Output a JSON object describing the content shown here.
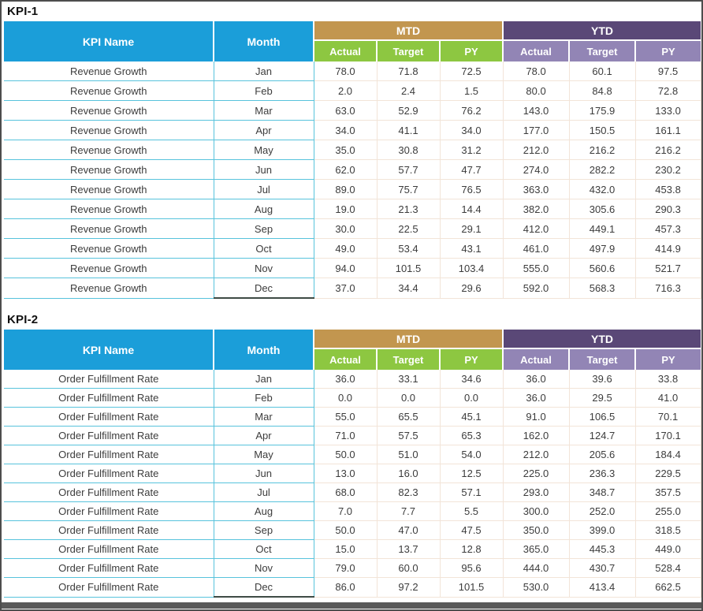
{
  "colors": {
    "header_cyan": "#1b9ed9",
    "mtd_tan": "#c2964f",
    "sub_green": "#8dc741",
    "ytd_purple": "#5a4877",
    "sub_purple": "#9285b5",
    "grid_cyan": "#58c3dc",
    "grid_peach": "#f2e4d8",
    "bottom_bar_gray": "#595959"
  },
  "tables": [
    {
      "section_title": "KPI-1",
      "header": {
        "kpi_name": "KPI Name",
        "month": "Month",
        "mtd": "MTD",
        "ytd": "YTD",
        "sub": [
          "Actual",
          "Target",
          "PY"
        ]
      },
      "rows": [
        {
          "kpi": "Revenue Growth",
          "month": "Jan",
          "mtd": [
            "78.0",
            "71.8",
            "72.5"
          ],
          "ytd": [
            "78.0",
            "60.1",
            "97.5"
          ]
        },
        {
          "kpi": "Revenue Growth",
          "month": "Feb",
          "mtd": [
            "2.0",
            "2.4",
            "1.5"
          ],
          "ytd": [
            "80.0",
            "84.8",
            "72.8"
          ]
        },
        {
          "kpi": "Revenue Growth",
          "month": "Mar",
          "mtd": [
            "63.0",
            "52.9",
            "76.2"
          ],
          "ytd": [
            "143.0",
            "175.9",
            "133.0"
          ]
        },
        {
          "kpi": "Revenue Growth",
          "month": "Apr",
          "mtd": [
            "34.0",
            "41.1",
            "34.0"
          ],
          "ytd": [
            "177.0",
            "150.5",
            "161.1"
          ]
        },
        {
          "kpi": "Revenue Growth",
          "month": "May",
          "mtd": [
            "35.0",
            "30.8",
            "31.2"
          ],
          "ytd": [
            "212.0",
            "216.2",
            "216.2"
          ]
        },
        {
          "kpi": "Revenue Growth",
          "month": "Jun",
          "mtd": [
            "62.0",
            "57.7",
            "47.7"
          ],
          "ytd": [
            "274.0",
            "282.2",
            "230.2"
          ]
        },
        {
          "kpi": "Revenue Growth",
          "month": "Jul",
          "mtd": [
            "89.0",
            "75.7",
            "76.5"
          ],
          "ytd": [
            "363.0",
            "432.0",
            "453.8"
          ]
        },
        {
          "kpi": "Revenue Growth",
          "month": "Aug",
          "mtd": [
            "19.0",
            "21.3",
            "14.4"
          ],
          "ytd": [
            "382.0",
            "305.6",
            "290.3"
          ]
        },
        {
          "kpi": "Revenue Growth",
          "month": "Sep",
          "mtd": [
            "30.0",
            "22.5",
            "29.1"
          ],
          "ytd": [
            "412.0",
            "449.1",
            "457.3"
          ]
        },
        {
          "kpi": "Revenue Growth",
          "month": "Oct",
          "mtd": [
            "49.0",
            "53.4",
            "43.1"
          ],
          "ytd": [
            "461.0",
            "497.9",
            "414.9"
          ]
        },
        {
          "kpi": "Revenue Growth",
          "month": "Nov",
          "mtd": [
            "94.0",
            "101.5",
            "103.4"
          ],
          "ytd": [
            "555.0",
            "560.6",
            "521.7"
          ]
        },
        {
          "kpi": "Revenue Growth",
          "month": "Dec",
          "mtd": [
            "37.0",
            "34.4",
            "29.6"
          ],
          "ytd": [
            "592.0",
            "568.3",
            "716.3"
          ]
        }
      ]
    },
    {
      "section_title": "KPI-2",
      "header": {
        "kpi_name": "KPI Name",
        "month": "Month",
        "mtd": "MTD",
        "ytd": "YTD",
        "sub": [
          "Actual",
          "Target",
          "PY"
        ]
      },
      "rows": [
        {
          "kpi": "Order Fulfillment Rate",
          "month": "Jan",
          "mtd": [
            "36.0",
            "33.1",
            "34.6"
          ],
          "ytd": [
            "36.0",
            "39.6",
            "33.8"
          ]
        },
        {
          "kpi": "Order Fulfillment Rate",
          "month": "Feb",
          "mtd": [
            "0.0",
            "0.0",
            "0.0"
          ],
          "ytd": [
            "36.0",
            "29.5",
            "41.0"
          ]
        },
        {
          "kpi": "Order Fulfillment Rate",
          "month": "Mar",
          "mtd": [
            "55.0",
            "65.5",
            "45.1"
          ],
          "ytd": [
            "91.0",
            "106.5",
            "70.1"
          ]
        },
        {
          "kpi": "Order Fulfillment Rate",
          "month": "Apr",
          "mtd": [
            "71.0",
            "57.5",
            "65.3"
          ],
          "ytd": [
            "162.0",
            "124.7",
            "170.1"
          ]
        },
        {
          "kpi": "Order Fulfillment Rate",
          "month": "May",
          "mtd": [
            "50.0",
            "51.0",
            "54.0"
          ],
          "ytd": [
            "212.0",
            "205.6",
            "184.4"
          ]
        },
        {
          "kpi": "Order Fulfillment Rate",
          "month": "Jun",
          "mtd": [
            "13.0",
            "16.0",
            "12.5"
          ],
          "ytd": [
            "225.0",
            "236.3",
            "229.5"
          ]
        },
        {
          "kpi": "Order Fulfillment Rate",
          "month": "Jul",
          "mtd": [
            "68.0",
            "82.3",
            "57.1"
          ],
          "ytd": [
            "293.0",
            "348.7",
            "357.5"
          ]
        },
        {
          "kpi": "Order Fulfillment Rate",
          "month": "Aug",
          "mtd": [
            "7.0",
            "7.7",
            "5.5"
          ],
          "ytd": [
            "300.0",
            "252.0",
            "255.0"
          ]
        },
        {
          "kpi": "Order Fulfillment Rate",
          "month": "Sep",
          "mtd": [
            "50.0",
            "47.0",
            "47.5"
          ],
          "ytd": [
            "350.0",
            "399.0",
            "318.5"
          ]
        },
        {
          "kpi": "Order Fulfillment Rate",
          "month": "Oct",
          "mtd": [
            "15.0",
            "13.7",
            "12.8"
          ],
          "ytd": [
            "365.0",
            "445.3",
            "449.0"
          ]
        },
        {
          "kpi": "Order Fulfillment Rate",
          "month": "Nov",
          "mtd": [
            "79.0",
            "60.0",
            "95.6"
          ],
          "ytd": [
            "444.0",
            "430.7",
            "528.4"
          ]
        },
        {
          "kpi": "Order Fulfillment Rate",
          "month": "Dec",
          "mtd": [
            "86.0",
            "97.2",
            "101.5"
          ],
          "ytd": [
            "530.0",
            "413.4",
            "662.5"
          ]
        }
      ]
    }
  ]
}
